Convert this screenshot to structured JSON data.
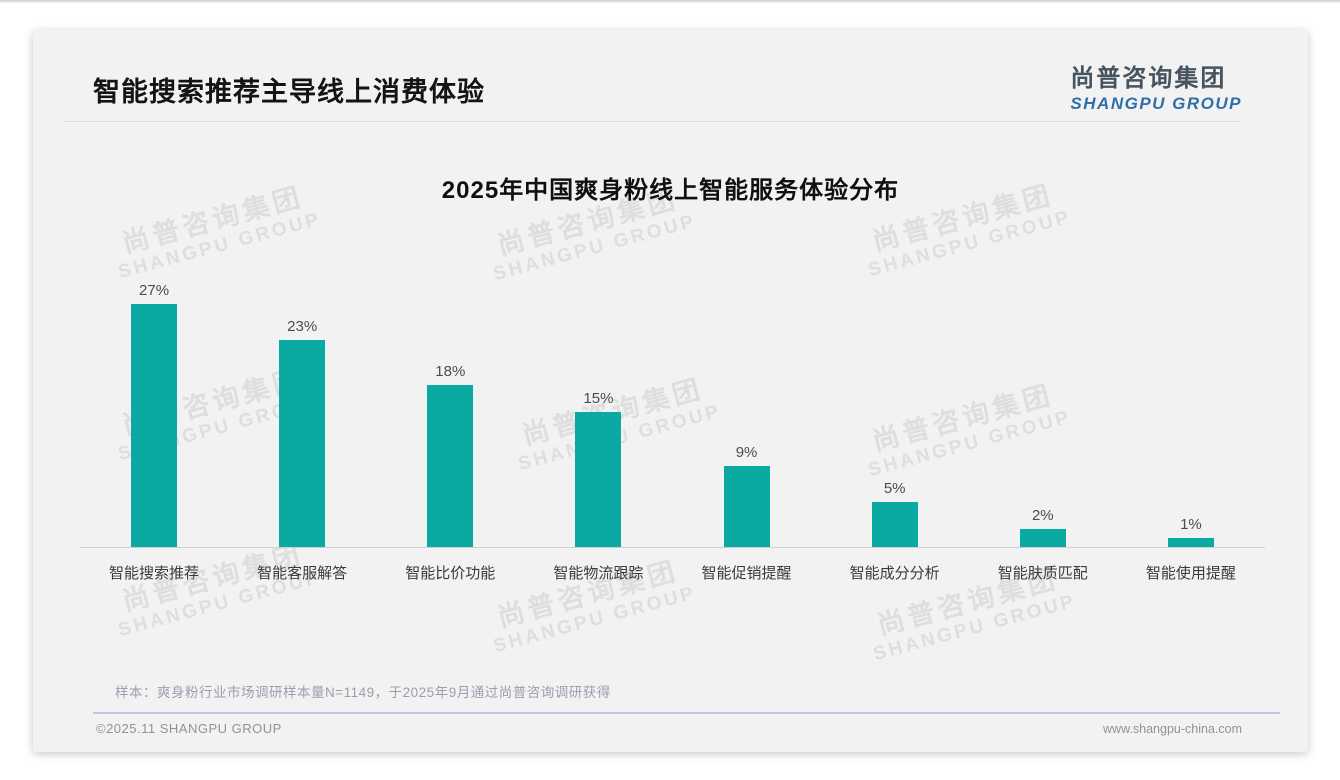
{
  "header": {
    "title": "智能搜索推荐主导线上消费体验"
  },
  "logo": {
    "cn": "尚普咨询集团",
    "en": "SHANGPU GROUP"
  },
  "watermark": {
    "cn": "尚普咨询集团",
    "en": "SHANGPU GROUP"
  },
  "chart_data": {
    "type": "bar",
    "title": "2025年中国爽身粉线上智能服务体验分布",
    "categories": [
      "智能搜索推荐",
      "智能客服解答",
      "智能比价功能",
      "智能物流跟踪",
      "智能促销提醒",
      "智能成分分析",
      "智能肤质匹配",
      "智能使用提醒"
    ],
    "values": [
      27,
      23,
      18,
      15,
      9,
      5,
      2,
      1
    ],
    "data_labels": [
      "27%",
      "23%",
      "18%",
      "15%",
      "9%",
      "5%",
      "2%",
      "1%"
    ],
    "unit": "%",
    "ylim": [
      0,
      30
    ],
    "bar_color": "#0aaaa3",
    "axis_line_color": "#cfcfcf",
    "grid": "off",
    "legend": "none",
    "xlabel": "",
    "ylabel": ""
  },
  "note": {
    "text": "样本：爽身粉行业市场调研样本量N=1149，于2025年9月通过尚普咨询调研获得"
  },
  "footer": {
    "left": "©2025.11 SHANGPU GROUP",
    "right": "www.shangpu-china.com"
  }
}
